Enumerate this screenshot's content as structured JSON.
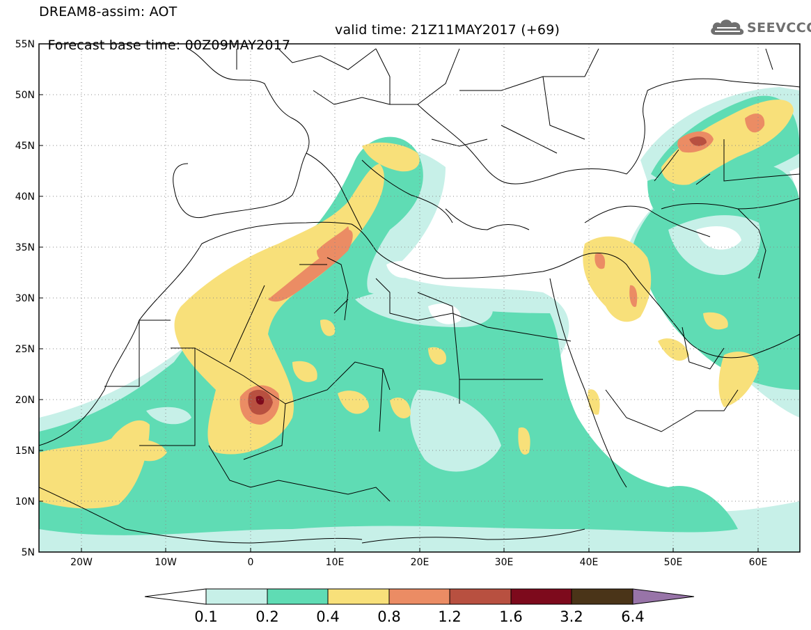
{
  "title": {
    "line1": "DREAM8-assim: AOT",
    "base_time": "Forecast base time: 00Z09MAY2017",
    "valid_time": "valid time: 21Z11MAY2017 (+69)"
  },
  "logo": {
    "text": "SEEVCCC",
    "icon": "cloud-icon"
  },
  "map": {
    "lat_labels": [
      "55N",
      "50N",
      "45N",
      "40N",
      "35N",
      "30N",
      "25N",
      "20N",
      "15N",
      "10N",
      "5N"
    ],
    "lon_labels": [
      "20W",
      "10W",
      "0",
      "10E",
      "20E",
      "30E",
      "40E",
      "50E",
      "60E"
    ],
    "lon_range": [
      -25,
      65
    ],
    "lat_range": [
      5,
      55
    ],
    "grid": "dotted"
  },
  "colorbar": {
    "labels": [
      "0.1",
      "0.2",
      "0.4",
      "0.8",
      "1.2",
      "1.6",
      "3.2",
      "6.4"
    ],
    "colors": [
      "#ffffff",
      "#c7f0e8",
      "#5fdcb4",
      "#f8e07a",
      "#eb8c64",
      "#b85040",
      "#7d0a1c",
      "#4a3418",
      "#9874a8"
    ]
  }
}
